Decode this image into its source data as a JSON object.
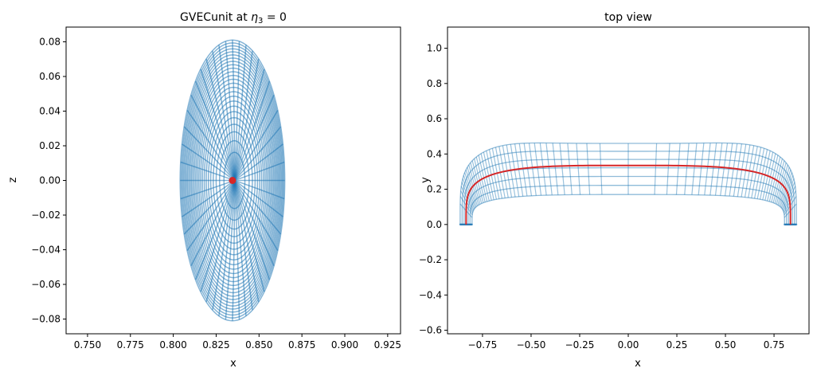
{
  "chart_data": [
    {
      "type": "line",
      "title": "GVECunit at η₃ = 0",
      "title_prefix": "GVECunit at ",
      "title_var": "η",
      "title_sub": "3",
      "title_suffix": " = 0",
      "xlabel": "x",
      "ylabel": "z",
      "xlim": [
        0.7375,
        0.9325
      ],
      "ylim": [
        -0.0885,
        0.0885
      ],
      "xticks": [
        "0.750",
        "0.775",
        "0.800",
        "0.825",
        "0.850",
        "0.875",
        "0.900",
        "0.925"
      ],
      "yticks": [
        "-0.08",
        "-0.06",
        "-0.04",
        "-0.02",
        "0.00",
        "0.02",
        "0.04",
        "0.06",
        "0.08"
      ],
      "grid": false,
      "series": [
        {
          "kind": "flux-surface-mesh",
          "color": "#1f77b4",
          "center_x": 0.8345,
          "center_z": 0.0,
          "outer_semi_axis_x": 0.0305,
          "outer_semi_axis_z": 0.081,
          "n_surfaces": 25,
          "n_rays": 48
        },
        {
          "kind": "magnetic-axis-point",
          "color": "#d62728",
          "x": 0.8345,
          "z": 0.0
        }
      ]
    },
    {
      "type": "line",
      "title": "top view",
      "xlabel": "x",
      "ylabel": "y",
      "xlim": [
        -0.93,
        0.93
      ],
      "ylim": [
        -0.62,
        1.12
      ],
      "xticks": [
        "-0.75",
        "-0.50",
        "-0.25",
        "0.00",
        "0.25",
        "0.50",
        "0.75"
      ],
      "yticks": [
        "-0.6",
        "-0.4",
        "-0.2",
        "0.0",
        "0.2",
        "0.4",
        "0.6",
        "0.8",
        "1.0"
      ],
      "grid": false,
      "series": [
        {
          "kind": "torus-surface-mesh",
          "color": "#1f77b4",
          "major_radius": 0.8345,
          "minor_radius": 0.0305,
          "y_outer_top": 0.5,
          "y_inner_top": 0.17
        },
        {
          "kind": "magnetic-axis-curve",
          "color": "#d62728",
          "y_top": 0.335
        }
      ]
    }
  ]
}
